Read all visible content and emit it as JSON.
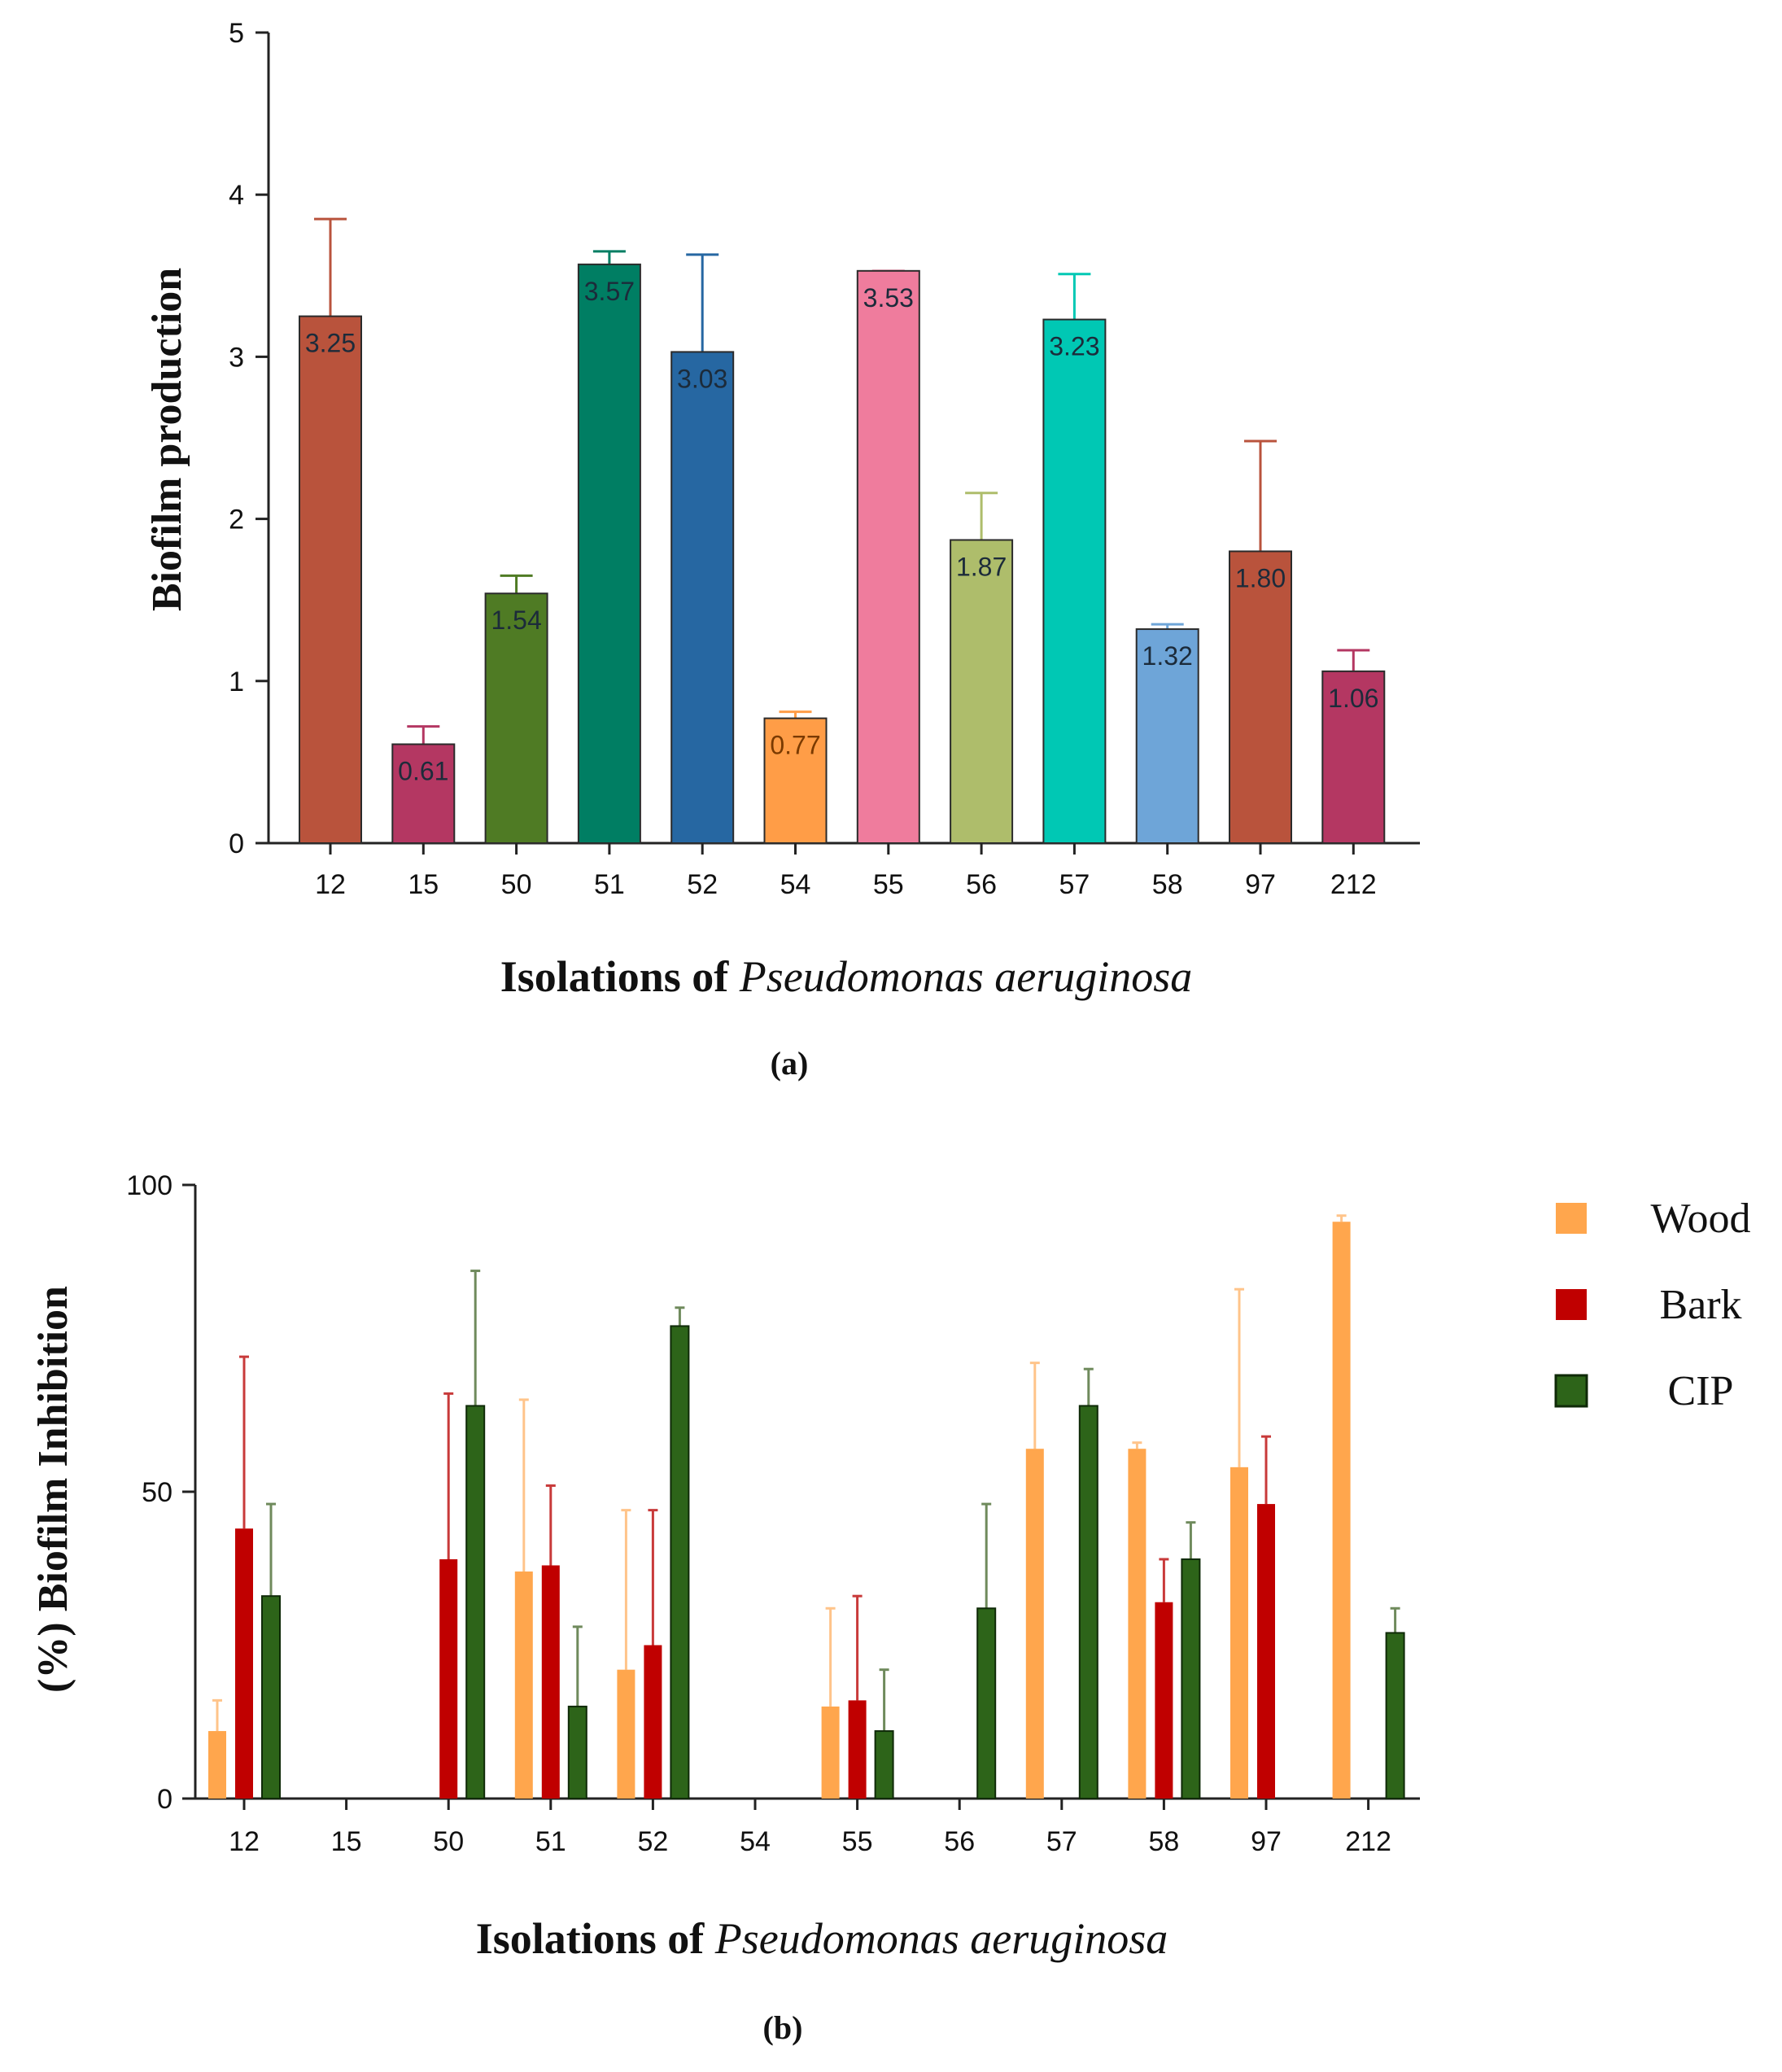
{
  "chart_data": [
    {
      "type": "bar",
      "panel_label": "(a)",
      "categories": [
        "12",
        "15",
        "50",
        "51",
        "52",
        "54",
        "55",
        "56",
        "57",
        "58",
        "97",
        "212"
      ],
      "values": [
        3.25,
        0.61,
        1.54,
        3.57,
        3.03,
        0.77,
        3.53,
        1.87,
        3.23,
        1.32,
        1.8,
        1.06
      ],
      "value_labels": [
        "3.25",
        "0.61",
        "1.54",
        "3.57",
        "3.03",
        "0.77",
        "3.53",
        "1.87",
        "3.23",
        "1.32",
        "1.80",
        "1.06"
      ],
      "errors": [
        0.6,
        0.11,
        0.11,
        0.08,
        0.6,
        0.04,
        0.0,
        0.29,
        0.28,
        0.03,
        0.68,
        0.13
      ],
      "colors": [
        "#b9533c",
        "#b43762",
        "#4f7b24",
        "#007e63",
        "#2667a2",
        "#ff9d47",
        "#ef7c9d",
        "#aebd6b",
        "#00c8b4",
        "#6ea5d8",
        "#b9533c",
        "#b43762"
      ],
      "title": "",
      "xlabel_prefix": "Isolations of ",
      "xlabel_italic": "Pseudomonas aeruginosa",
      "ylabel": "Biofilm production",
      "ylim": [
        0,
        5
      ],
      "yticks": [
        "0",
        "1",
        "2",
        "3",
        "4",
        "5"
      ],
      "grid": false
    },
    {
      "type": "bar",
      "panel_label": "(b)",
      "categories": [
        "12",
        "15",
        "50",
        "51",
        "52",
        "54",
        "55",
        "56",
        "57",
        "58",
        "97",
        "212"
      ],
      "series": [
        {
          "name": "Wood",
          "color": "#ffa64d",
          "values": [
            11,
            0,
            0,
            37,
            21,
            0,
            15,
            0,
            57,
            57,
            54,
            94
          ],
          "errors": [
            5,
            0,
            0,
            28,
            26,
            0,
            16,
            0,
            14,
            1,
            29,
            1
          ]
        },
        {
          "name": "Bark",
          "color": "#c00000",
          "values": [
            44,
            0,
            39,
            38,
            25,
            0,
            16,
            0,
            0,
            32,
            48,
            0
          ],
          "errors": [
            28,
            0,
            27,
            13,
            22,
            0,
            17,
            0,
            0,
            7,
            11,
            0
          ]
        },
        {
          "name": "CIP",
          "color": "#2d6419",
          "values": [
            33,
            0,
            64,
            15,
            77,
            0,
            11,
            31,
            64,
            39,
            0,
            27
          ],
          "errors": [
            15,
            0,
            22,
            13,
            3,
            0,
            10,
            17,
            6,
            6,
            0,
            4
          ]
        }
      ],
      "title": "",
      "xlabel_prefix": "Isolations of ",
      "xlabel_italic": "Pseudomonas aeruginosa",
      "ylabel": "(%) Biofilm Inhibition",
      "ylim": [
        0,
        100
      ],
      "yticks": [
        "0",
        "50",
        "100"
      ],
      "legend": [
        "Wood",
        "Bark",
        "CIP"
      ],
      "legend_position": "right",
      "grid": false
    }
  ]
}
